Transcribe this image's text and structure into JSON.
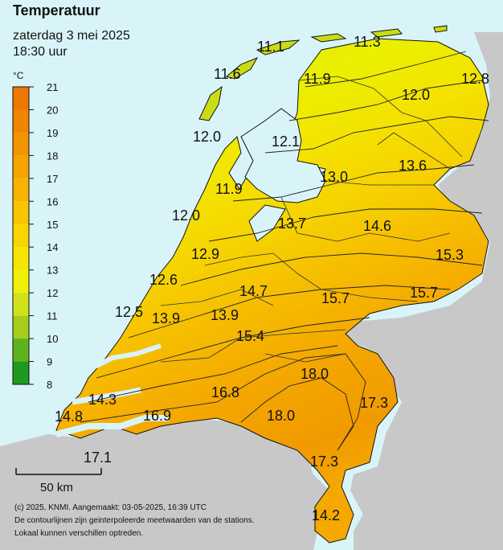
{
  "header": {
    "title": "Temperatuur",
    "date": "zaterdag 3 mei 2025",
    "time": "18:30 uur"
  },
  "legend": {
    "unit": "°C",
    "ticks": [
      "8",
      "9",
      "10",
      "11",
      "12",
      "13",
      "14",
      "15",
      "16",
      "17",
      "18",
      "19",
      "20",
      "21"
    ],
    "colors": [
      "#1f9a1f",
      "#5fb21f",
      "#a6cd1c",
      "#cfe21a",
      "#eef00a",
      "#f6e500",
      "#f8d500",
      "#f9c400",
      "#f7b300",
      "#f6a300",
      "#f29400",
      "#f08500",
      "#ee7700"
    ]
  },
  "stations": [
    {
      "value": "11.1"
    },
    {
      "value": "11.3"
    },
    {
      "value": "11.6"
    },
    {
      "value": "11.9"
    },
    {
      "value": "12.8"
    },
    {
      "value": "12.0"
    },
    {
      "value": "12.0"
    },
    {
      "value": "12.1"
    },
    {
      "value": "13.0"
    },
    {
      "value": "13.6"
    },
    {
      "value": "11.9"
    },
    {
      "value": "12.0"
    },
    {
      "value": "13.7"
    },
    {
      "value": "14.6"
    },
    {
      "value": "12.9"
    },
    {
      "value": "15.3"
    },
    {
      "value": "12.6"
    },
    {
      "value": "14.7"
    },
    {
      "value": "15.7"
    },
    {
      "value": "15.7"
    },
    {
      "value": "12.5"
    },
    {
      "value": "13.9"
    },
    {
      "value": "13.9"
    },
    {
      "value": "15.4"
    },
    {
      "value": "18.0"
    },
    {
      "value": "14.3"
    },
    {
      "value": "16.8"
    },
    {
      "value": "17.3"
    },
    {
      "value": "14.8"
    },
    {
      "value": "16.9"
    },
    {
      "value": "18.0"
    },
    {
      "value": "17.1"
    },
    {
      "value": "17.3"
    },
    {
      "value": "14.2"
    }
  ],
  "scale_bar": {
    "label": "50 km"
  },
  "credits": {
    "line1": "(c) 2025, KNMI. Aangemaakt: 03-05-2025, 16:39 UTC",
    "line2": "De contourlijnen zijn geinterpoleerde meetwaarden van de stations.",
    "line3": "Lokaal kunnen verschillen optreden."
  },
  "colors": {
    "sea": "#d9f4f8",
    "land_outside": "#c8c8c8",
    "border": "#111111"
  }
}
